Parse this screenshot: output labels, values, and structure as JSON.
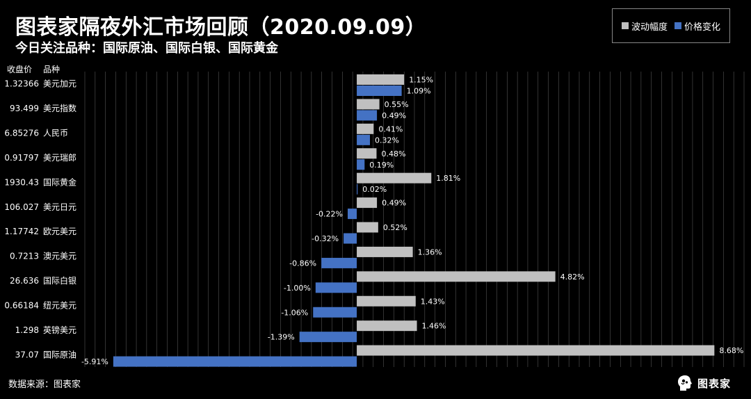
{
  "header": {
    "title": "图表家隔夜外汇市场回顾（2020.09.09）",
    "subtitle": "今日关注品种：国际原油、国际白银、国际黄金"
  },
  "columns": {
    "price_label": "收盘价",
    "name_label": "品种"
  },
  "footer": {
    "source": "数据来源：图表家"
  },
  "brand": {
    "name": "图表家",
    "logo_icon": "brain-head-icon"
  },
  "colors": {
    "background": "#000000",
    "range_series": "#c0c0c0",
    "change_series": "#4472c4",
    "grid": "#9a9a9a"
  },
  "chart_data": {
    "type": "bar",
    "orientation": "horizontal",
    "grid": true,
    "legend_position": "top-right",
    "xlim": [
      -6.6,
      9.4
    ],
    "categories": [
      "美元加元",
      "美元指数",
      "人民币",
      "美元瑞郎",
      "国际黄金",
      "美元日元",
      "欧元美元",
      "澳元美元",
      "国际白银",
      "纽元美元",
      "英镑美元",
      "国际原油"
    ],
    "closing_prices": [
      "1.32366",
      "93.499",
      "6.85276",
      "0.91797",
      "1930.43",
      "106.027",
      "1.17742",
      "0.7213",
      "26.636",
      "0.66184",
      "1.298",
      "37.07"
    ],
    "series": [
      {
        "name": "波动幅度",
        "values": [
          1.15,
          0.55,
          0.41,
          0.48,
          1.81,
          0.49,
          0.52,
          1.36,
          4.82,
          1.43,
          1.46,
          8.68
        ],
        "labels": [
          "1.15%",
          "0.55%",
          "0.41%",
          "0.48%",
          "1.81%",
          "0.49%",
          "0.52%",
          "1.36%",
          "4.82%",
          "1.43%",
          "1.46%",
          "8.68%"
        ]
      },
      {
        "name": "价格变化",
        "values": [
          1.09,
          0.49,
          0.32,
          0.19,
          0.02,
          -0.22,
          -0.32,
          -0.86,
          -1.0,
          -1.06,
          -1.39,
          -5.91
        ],
        "labels": [
          "1.09%",
          "0.49%",
          "0.32%",
          "0.19%",
          "0.02%",
          "-0.22%",
          "-0.32%",
          "-0.86%",
          "-1.00%",
          "-1.06%",
          "-1.39%",
          "-5.91%"
        ]
      }
    ]
  }
}
